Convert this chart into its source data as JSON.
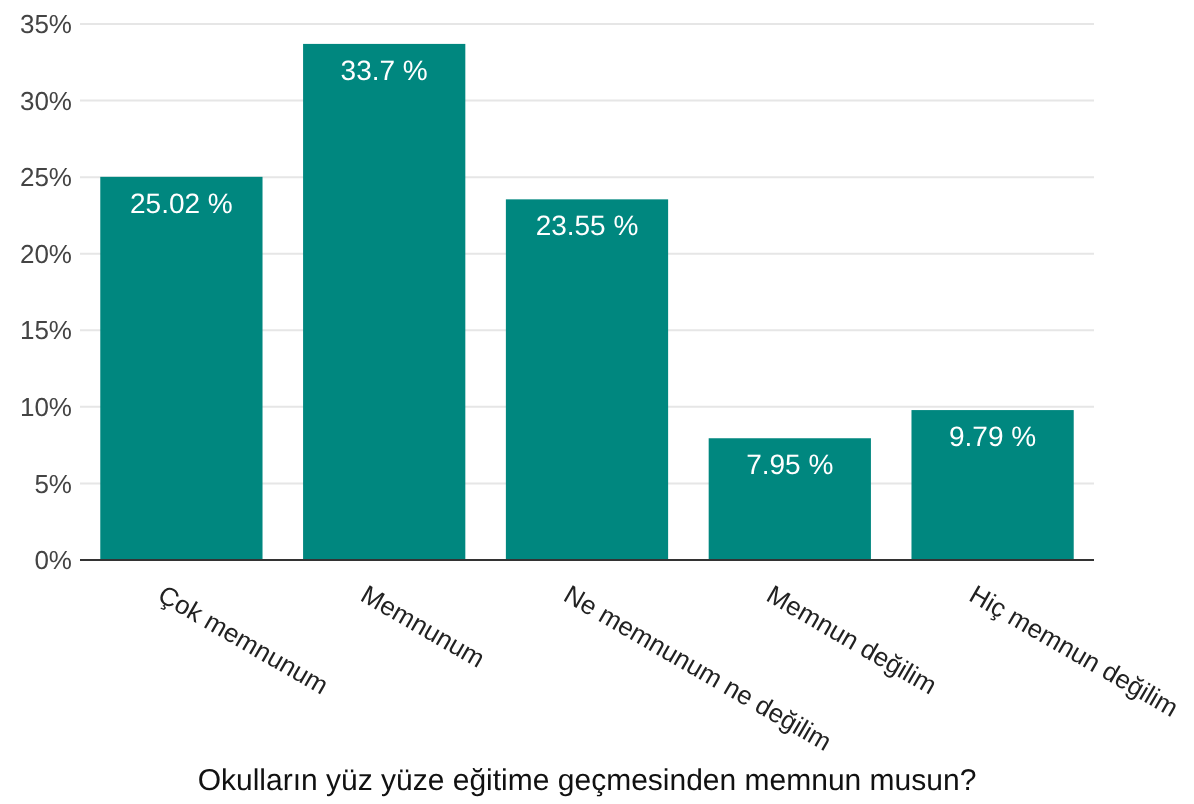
{
  "chart_data": {
    "type": "bar",
    "xlabel": "Okulların yüz yüze eğitime geçmesinden memnun musun?",
    "categories": [
      "Çok memnunum",
      "Memnunum",
      "Ne memnunum ne değilim",
      "Memnun değilim",
      "Hiç memnun değilim"
    ],
    "values": [
      25.02,
      33.7,
      23.55,
      7.95,
      9.79
    ],
    "value_labels": [
      "25.02 %",
      "33.7 %",
      "23.55 %",
      "7.95 %",
      "9.79 %"
    ],
    "color": "#00877f",
    "ylim": [
      0,
      35
    ],
    "yticks": [
      {
        "value": 0,
        "label": "0%"
      },
      {
        "value": 5,
        "label": "5%"
      },
      {
        "value": 10,
        "label": "10%"
      },
      {
        "value": 15,
        "label": "15%"
      },
      {
        "value": 20,
        "label": "20%"
      },
      {
        "value": 25,
        "label": "25%"
      },
      {
        "value": 30,
        "label": "30%"
      },
      {
        "value": 35,
        "label": "35%"
      }
    ],
    "grid": "y"
  }
}
